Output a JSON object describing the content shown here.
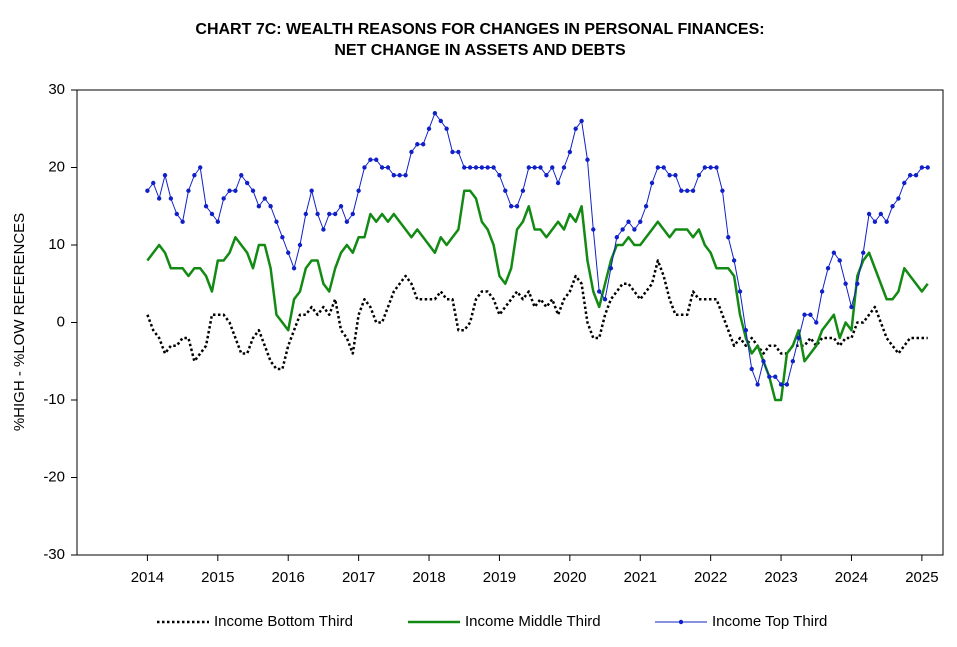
{
  "chart_data": {
    "type": "line",
    "title": [
      "CHART 7C: WEALTH REASONS FOR CHANGES IN PERSONAL FINANCES:",
      "NET CHANGE IN ASSETS AND DEBTS"
    ],
    "y_label": "%HIGH - %LOW REFERENCES",
    "xlim": [
      2013,
      2025.3
    ],
    "xticks": [
      2014,
      2015,
      2016,
      2017,
      2018,
      2019,
      2020,
      2021,
      2022,
      2023,
      2024,
      2025
    ],
    "ylim": [
      -30,
      30
    ],
    "yticks": [
      -30,
      -20,
      -10,
      0,
      10,
      20,
      30
    ],
    "grid": false,
    "legend": "bottom",
    "x": [
      2014,
      2014.083,
      2014.167,
      2014.25,
      2014.333,
      2014.417,
      2014.5,
      2014.583,
      2014.667,
      2014.75,
      2014.833,
      2014.917,
      2015,
      2015.083,
      2015.167,
      2015.25,
      2015.333,
      2015.417,
      2015.5,
      2015.583,
      2015.667,
      2015.75,
      2015.833,
      2015.917,
      2016,
      2016.083,
      2016.167,
      2016.25,
      2016.333,
      2016.417,
      2016.5,
      2016.583,
      2016.667,
      2016.75,
      2016.833,
      2016.917,
      2017,
      2017.083,
      2017.167,
      2017.25,
      2017.333,
      2017.417,
      2017.5,
      2017.583,
      2017.667,
      2017.75,
      2017.833,
      2017.917,
      2018,
      2018.083,
      2018.167,
      2018.25,
      2018.333,
      2018.417,
      2018.5,
      2018.583,
      2018.667,
      2018.75,
      2018.833,
      2018.917,
      2019,
      2019.083,
      2019.167,
      2019.25,
      2019.333,
      2019.417,
      2019.5,
      2019.583,
      2019.667,
      2019.75,
      2019.833,
      2019.917,
      2020,
      2020.083,
      2020.167,
      2020.25,
      2020.333,
      2020.417,
      2020.5,
      2020.583,
      2020.667,
      2020.75,
      2020.833,
      2020.917,
      2021,
      2021.083,
      2021.167,
      2021.25,
      2021.333,
      2021.417,
      2021.5,
      2021.583,
      2021.667,
      2021.75,
      2021.833,
      2021.917,
      2022,
      2022.083,
      2022.167,
      2022.25,
      2022.333,
      2022.417,
      2022.5,
      2022.583,
      2022.667,
      2022.75,
      2022.833,
      2022.917,
      2023,
      2023.083,
      2023.167,
      2023.25,
      2023.333,
      2023.417,
      2023.5,
      2023.583,
      2023.667,
      2023.75,
      2023.833,
      2023.917,
      2024,
      2024.083,
      2024.167,
      2024.25,
      2024.333,
      2024.417,
      2024.5,
      2024.583,
      2024.667,
      2024.75,
      2024.833,
      2024.917,
      2025,
      2025.083
    ],
    "series": [
      {
        "name": "Income Bottom Third",
        "color": "#000000",
        "line_style": "dotted",
        "marker": "none",
        "values": [
          1,
          -1,
          -2,
          -4,
          -3,
          -3,
          -2,
          -2,
          -5,
          -4,
          -3,
          1,
          1,
          1,
          0,
          -2,
          -4,
          -4,
          -2,
          -1,
          -3,
          -5,
          -6,
          -6,
          -3,
          -1,
          1,
          1,
          2,
          1,
          2,
          1,
          3,
          -1,
          -2,
          -4,
          1,
          3,
          2,
          0,
          0,
          2,
          4,
          5,
          6,
          5,
          3,
          3,
          3,
          3,
          4,
          3,
          3,
          -1,
          -1,
          0,
          3,
          4,
          4,
          3,
          1,
          2,
          3,
          4,
          3,
          4,
          2,
          3,
          2,
          3,
          1,
          3,
          4,
          6,
          5,
          0,
          -2,
          -2,
          1,
          3,
          4,
          5,
          5,
          4,
          3,
          4,
          5,
          8,
          6,
          3,
          1,
          1,
          1,
          4,
          3,
          3,
          3,
          3,
          1,
          -1,
          -3,
          -2,
          -3,
          -2,
          -3,
          -4,
          -3,
          -3,
          -4,
          -4,
          -3,
          -3,
          -3,
          -2,
          -3,
          -2,
          -2,
          -2,
          -3,
          -2,
          -2,
          0,
          0,
          1,
          2,
          0,
          -2,
          -3,
          -4,
          -3,
          -2,
          -2,
          -2,
          -2
        ]
      },
      {
        "name": "Income Middle Third",
        "color": "#138a13",
        "line_style": "solid",
        "marker": "none",
        "values": [
          8,
          9,
          10,
          9,
          7,
          7,
          7,
          6,
          7,
          7,
          6,
          4,
          8,
          8,
          9,
          11,
          10,
          9,
          7,
          10,
          10,
          7,
          1,
          0,
          -1,
          3,
          4,
          7,
          8,
          8,
          5,
          4,
          7,
          9,
          10,
          9,
          11,
          11,
          14,
          13,
          14,
          13,
          14,
          13,
          12,
          11,
          12,
          11,
          10,
          9,
          11,
          10,
          11,
          12,
          17,
          17,
          16,
          13,
          12,
          10,
          6,
          5,
          7,
          12,
          13,
          15,
          12,
          12,
          11,
          12,
          13,
          12,
          14,
          13,
          15,
          8,
          4,
          2,
          5,
          8,
          10,
          10,
          11,
          10,
          10,
          11,
          12,
          13,
          12,
          11,
          12,
          12,
          12,
          11,
          12,
          10,
          9,
          7,
          7,
          7,
          6,
          1,
          -2,
          -4,
          -3,
          -5,
          -7,
          -10,
          -10,
          -4,
          -3,
          -1,
          -5,
          -4,
          -3,
          -1,
          0,
          1,
          -2,
          0,
          -1,
          6,
          8,
          9,
          7,
          5,
          3,
          3,
          4,
          7,
          6,
          5,
          4,
          5
        ]
      },
      {
        "name": "Income Top Third",
        "color": "#1020c8",
        "line_style": "solid",
        "marker": "dot",
        "values": [
          17,
          18,
          16,
          19,
          16,
          14,
          13,
          17,
          19,
          20,
          15,
          14,
          13,
          16,
          17,
          17,
          19,
          18,
          17,
          15,
          16,
          15,
          13,
          11,
          9,
          7,
          10,
          14,
          17,
          14,
          12,
          14,
          14,
          15,
          13,
          14,
          17,
          20,
          21,
          21,
          20,
          20,
          19,
          19,
          19,
          22,
          23,
          23,
          25,
          27,
          26,
          25,
          22,
          22,
          20,
          20,
          20,
          20,
          20,
          20,
          19,
          17,
          15,
          15,
          17,
          20,
          20,
          20,
          19,
          20,
          18,
          20,
          22,
          25,
          26,
          21,
          12,
          4,
          3,
          7,
          11,
          12,
          13,
          12,
          13,
          15,
          18,
          20,
          20,
          19,
          19,
          17,
          17,
          17,
          19,
          20,
          20,
          20,
          17,
          11,
          8,
          4,
          -1,
          -6,
          -8,
          -5,
          -7,
          -7,
          -8,
          -8,
          -5,
          -2,
          1,
          1,
          0,
          4,
          7,
          9,
          8,
          5,
          2,
          5,
          9,
          14,
          13,
          14,
          13,
          15,
          16,
          18,
          19,
          19,
          20,
          20
        ]
      }
    ]
  }
}
